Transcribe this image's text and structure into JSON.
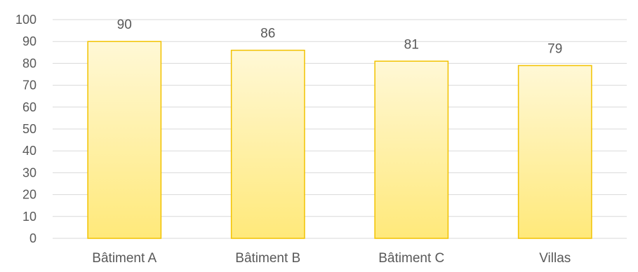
{
  "chart_data": {
    "type": "bar",
    "title": "",
    "xlabel": "",
    "ylabel": "",
    "categories": [
      "Bâtiment A",
      "Bâtiment B",
      "Bâtiment C",
      "Villas"
    ],
    "values": [
      90,
      86,
      81,
      79
    ],
    "data_labels": [
      "90",
      "86",
      "81",
      "79"
    ],
    "ylim": [
      0,
      100
    ],
    "yticks": [
      0,
      10,
      20,
      30,
      40,
      50,
      60,
      70,
      80,
      90,
      100
    ],
    "grid": true,
    "legend": "none",
    "colors": {
      "bar_top": "#FFF8D6",
      "bar_bottom": "#FFE97A",
      "bar_border": "#F2C200",
      "grid": "#D9D9D9",
      "text": "#595959"
    }
  }
}
